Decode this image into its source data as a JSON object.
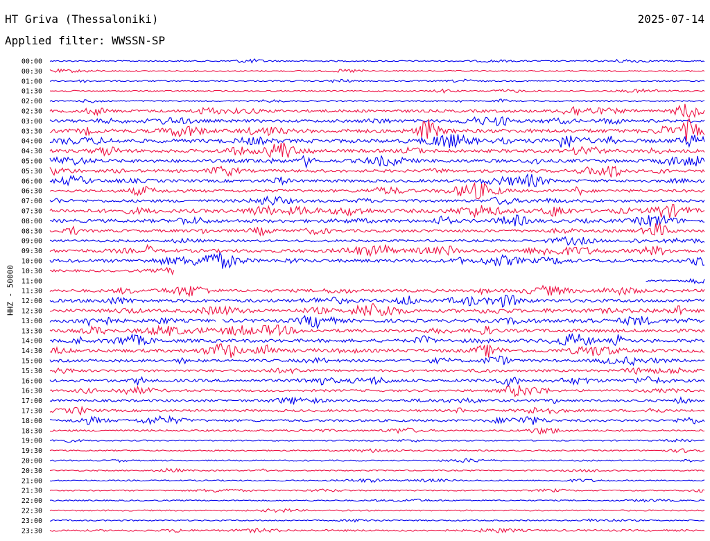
{
  "header": {
    "station": "HT Griva (Thessaloniki)",
    "date": "2025-07-14",
    "filter_text": "Applied filter: WWSSN-SP"
  },
  "side_label": "HHZ - 50000",
  "colors": {
    "odd_trace": "#0000ee",
    "even_trace": "#ee1144"
  },
  "time_labels": [
    "00:00",
    "00:30",
    "01:00",
    "01:30",
    "02:00",
    "02:30",
    "03:00",
    "03:30",
    "04:00",
    "04:30",
    "05:00",
    "05:30",
    "06:00",
    "06:30",
    "07:00",
    "07:30",
    "08:00",
    "08:30",
    "09:00",
    "09:30",
    "10:00",
    "10:30",
    "11:00",
    "11:30",
    "12:00",
    "12:30",
    "13:00",
    "13:30",
    "14:00",
    "14:30",
    "15:00",
    "15:30",
    "16:00",
    "16:30",
    "17:00",
    "17:30",
    "18:00",
    "18:30",
    "19:00",
    "19:30",
    "20:00",
    "20:30",
    "21:00",
    "21:30",
    "22:00",
    "22:30",
    "23:00",
    "23:30"
  ],
  "trace_noise_level": [
    1,
    1,
    1,
    1,
    1,
    4,
    4,
    6,
    6,
    5,
    5,
    4,
    4,
    4,
    4,
    6,
    5,
    4,
    3,
    5,
    5,
    3,
    2,
    4,
    5,
    5,
    5,
    5,
    5,
    5,
    4,
    3,
    4,
    3,
    3,
    3,
    3,
    2,
    1,
    1,
    1,
    1,
    1,
    1,
    1,
    1,
    1,
    2
  ],
  "gaps": [
    {
      "row": 21,
      "start": 0.19,
      "end": 1.0
    },
    {
      "row": 22,
      "start": 0.0,
      "end": 0.91
    },
    {
      "row": 26,
      "start": 0.255,
      "end": 0.262
    }
  ]
}
